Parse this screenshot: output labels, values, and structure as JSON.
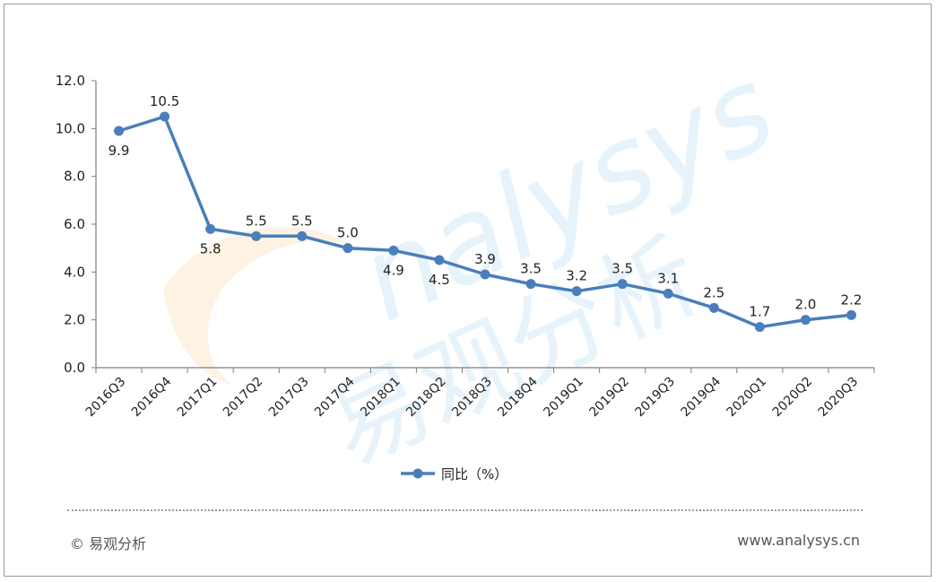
{
  "chart_data": {
    "type": "line",
    "categories": [
      "2016Q3",
      "2016Q4",
      "2017Q1",
      "2017Q2",
      "2017Q3",
      "2017Q4",
      "2018Q1",
      "2018Q2",
      "2018Q3",
      "2018Q4",
      "2019Q1",
      "2019Q2",
      "2019Q3",
      "2019Q4",
      "2020Q1",
      "2020Q2",
      "2020Q3"
    ],
    "series": [
      {
        "name": "同比（%）",
        "values": [
          9.9,
          10.5,
          5.8,
          5.5,
          5.5,
          5.0,
          4.9,
          4.5,
          3.9,
          3.5,
          3.2,
          3.5,
          3.1,
          2.5,
          1.7,
          2.0,
          2.2
        ],
        "labels": [
          "9.9",
          "10.5",
          "5.8",
          "5.5",
          "5.5",
          "5.0",
          "4.9",
          "4.5",
          "3.9",
          "3.5",
          "3.2",
          "3.5",
          "3.1",
          "2.5",
          "1.7",
          "2.0",
          "2.2"
        ],
        "label_pos": [
          "below",
          "above",
          "below",
          "above",
          "above",
          "above",
          "below",
          "below",
          "above",
          "above",
          "above",
          "above",
          "above",
          "above",
          "above",
          "above",
          "above"
        ],
        "color": "#4a7ebb"
      }
    ],
    "yticks": [
      "0.0",
      "2.0",
      "4.0",
      "6.0",
      "8.0",
      "10.0",
      "12.0"
    ],
    "ylim": [
      0,
      12
    ],
    "grid": false,
    "legend_position": "bottom",
    "title": "",
    "xlabel": "",
    "ylabel": ""
  },
  "footer": {
    "copyright": "© 易观分析",
    "website": "www.analysys.cn"
  },
  "watermark": {
    "text_en": "nalysys",
    "text_cn": "易观分析"
  }
}
